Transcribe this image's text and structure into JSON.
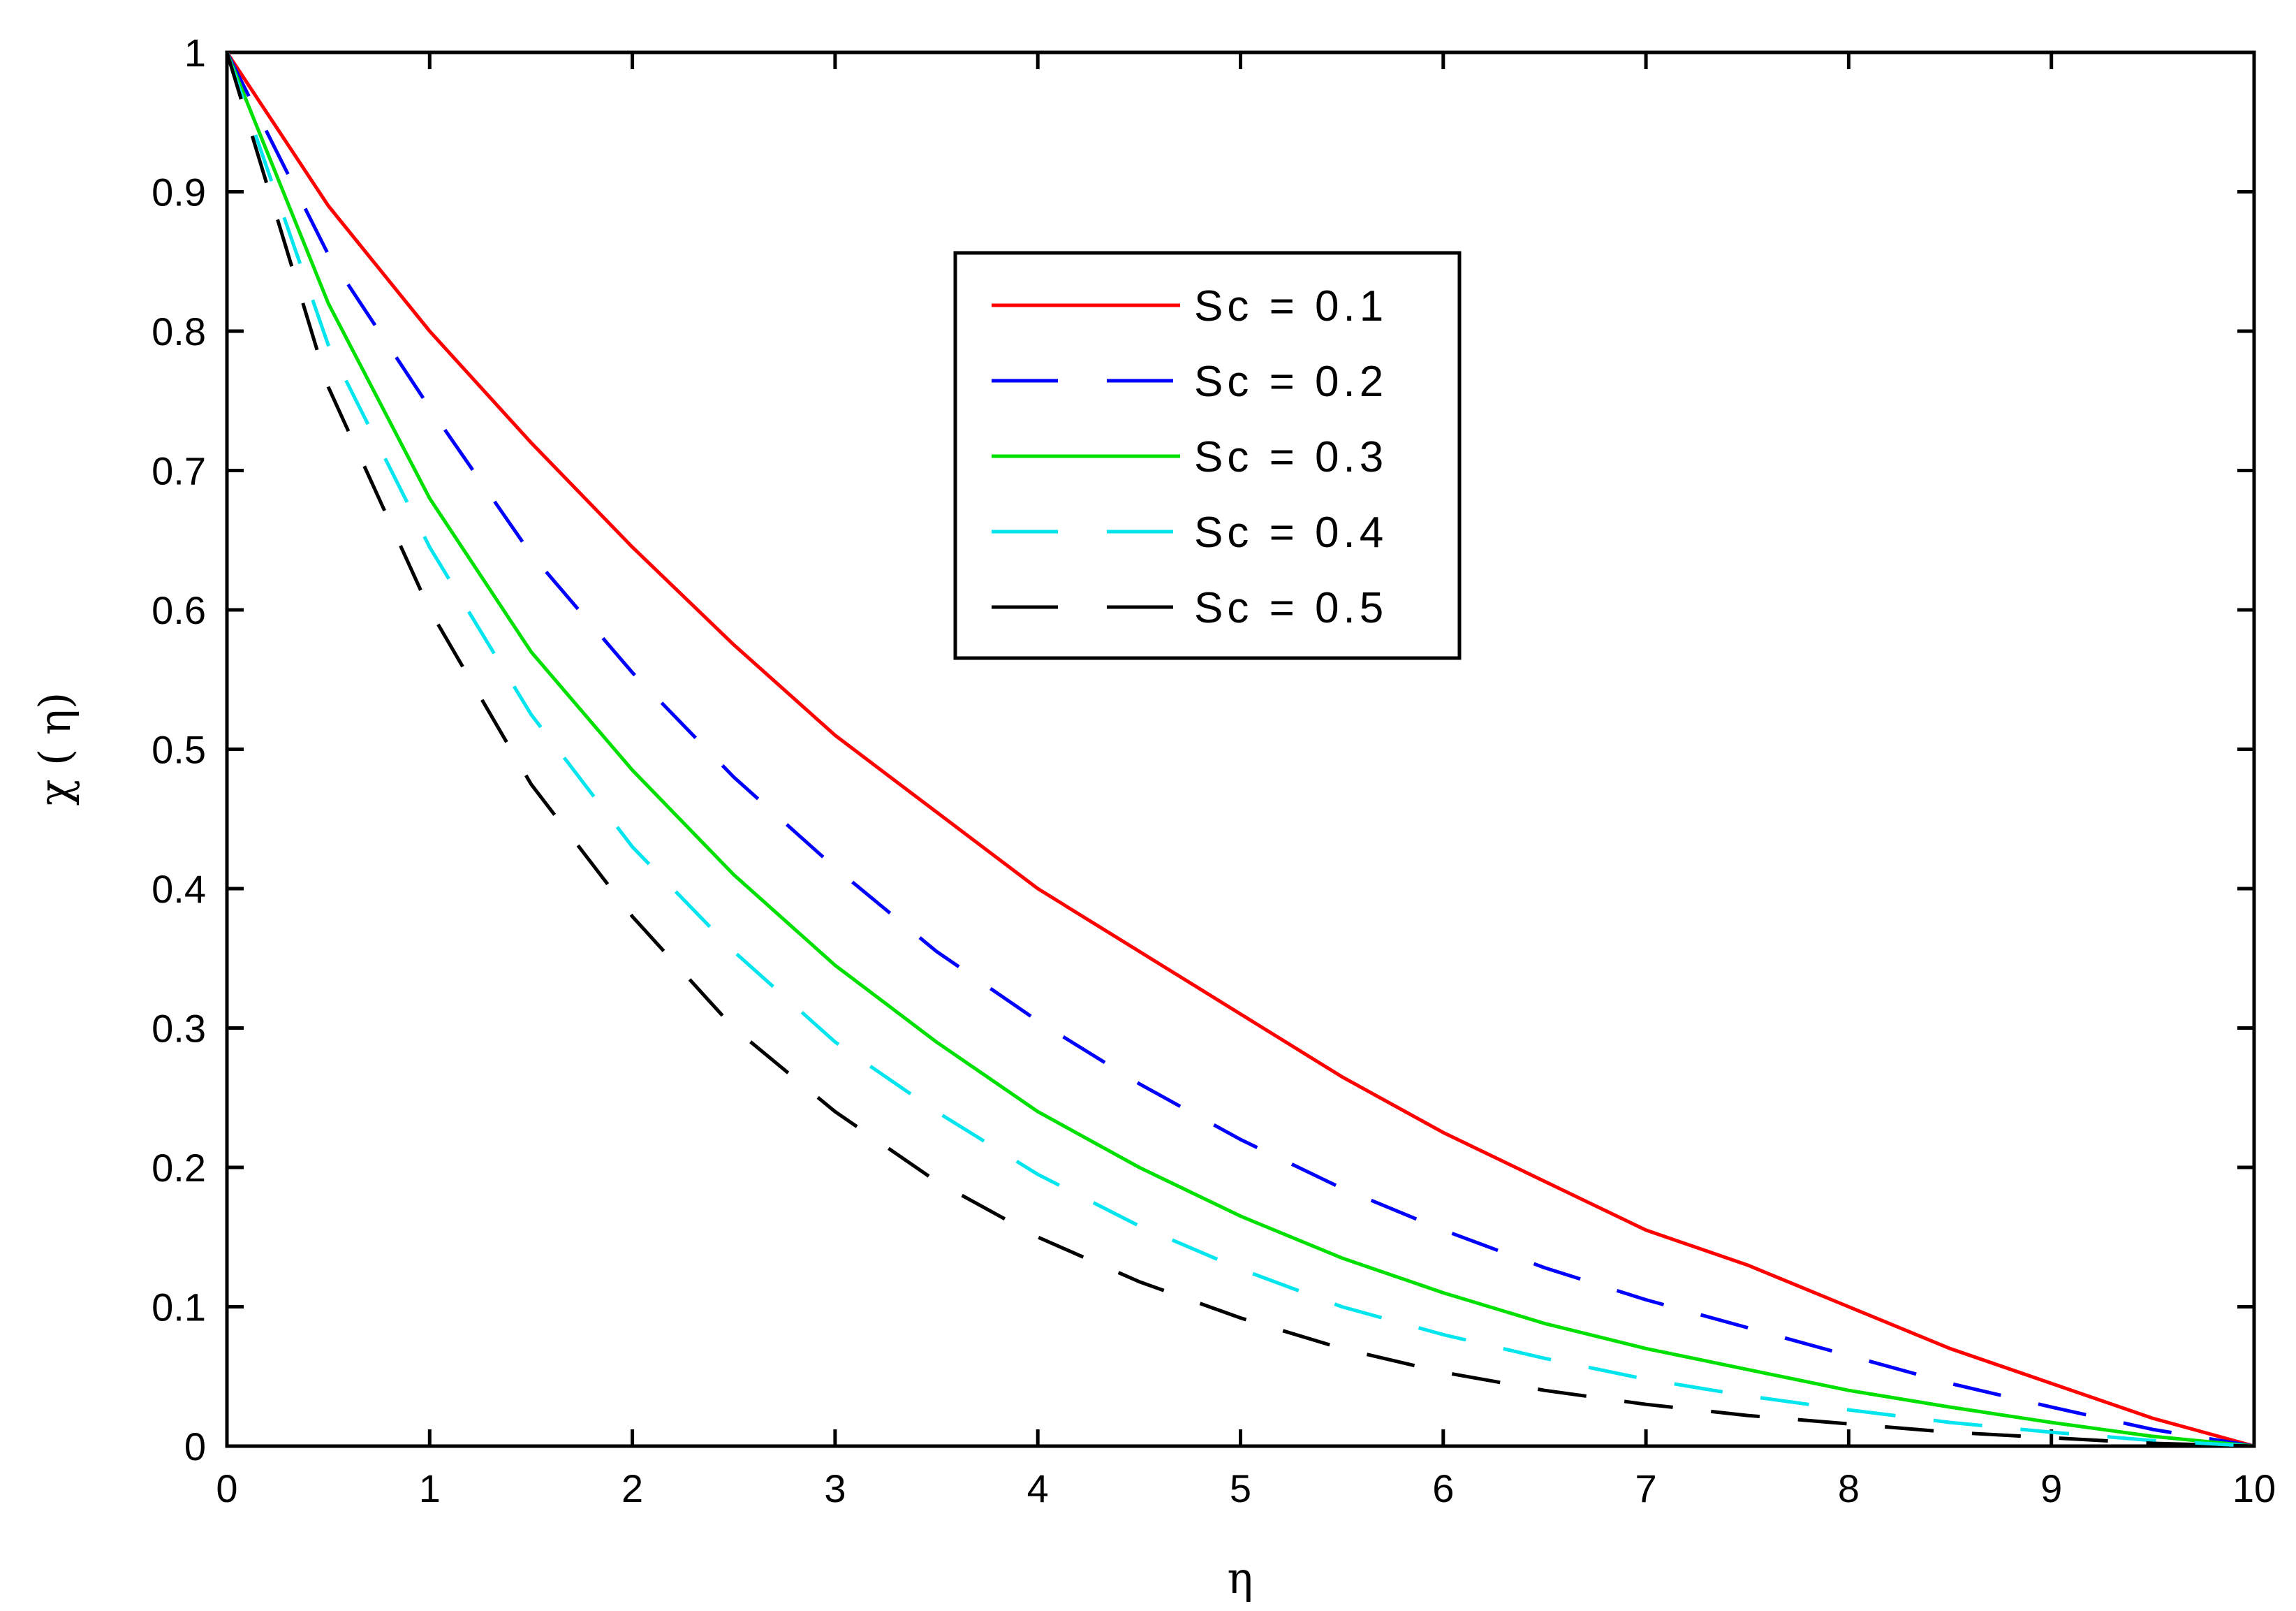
{
  "chart_data": {
    "type": "line",
    "title": "",
    "xlabel": "η",
    "ylabel": "χ ( η)",
    "xlim": [
      0,
      10
    ],
    "ylim": [
      0,
      1
    ],
    "grid": false,
    "legend_position": "top-center",
    "x_ticks": [
      "0",
      "1",
      "2",
      "3",
      "4",
      "5",
      "6",
      "7",
      "8",
      "9",
      "10"
    ],
    "y_ticks": [
      "0",
      "0.1",
      "0.2",
      "0.3",
      "0.4",
      "0.5",
      "0.6",
      "0.7",
      "0.8",
      "0.9",
      "1"
    ],
    "x": [
      0,
      0.5,
      1,
      1.5,
      2,
      2.5,
      3,
      3.5,
      4,
      4.5,
      5,
      5.5,
      6,
      6.5,
      7,
      7.5,
      8,
      8.5,
      9,
      9.5,
      10
    ],
    "series": [
      {
        "name": "Sc =  0.1",
        "color": "#ff0000",
        "dash": "solid",
        "values": [
          1.0,
          0.89,
          0.8,
          0.72,
          0.645,
          0.575,
          0.51,
          0.455,
          0.4,
          0.355,
          0.31,
          0.265,
          0.225,
          0.19,
          0.155,
          0.13,
          0.1,
          0.07,
          0.045,
          0.02,
          0.0
        ]
      },
      {
        "name": "Sc =  0.2",
        "color": "#0000ff",
        "dash": "dashed",
        "values": [
          1.0,
          0.855,
          0.745,
          0.64,
          0.555,
          0.48,
          0.415,
          0.355,
          0.305,
          0.26,
          0.22,
          0.185,
          0.155,
          0.128,
          0.105,
          0.085,
          0.065,
          0.045,
          0.028,
          0.012,
          0.0
        ]
      },
      {
        "name": "Sc =  0.3",
        "color": "#00e000",
        "dash": "solid",
        "values": [
          1.0,
          0.82,
          0.68,
          0.57,
          0.485,
          0.41,
          0.345,
          0.29,
          0.24,
          0.2,
          0.165,
          0.135,
          0.11,
          0.088,
          0.07,
          0.055,
          0.04,
          0.028,
          0.017,
          0.007,
          0.0
        ]
      },
      {
        "name": "Sc =  0.4",
        "color": "#00e5ee",
        "dash": "dashed",
        "values": [
          1.0,
          0.79,
          0.645,
          0.525,
          0.43,
          0.355,
          0.29,
          0.24,
          0.195,
          0.158,
          0.127,
          0.1,
          0.08,
          0.063,
          0.048,
          0.036,
          0.026,
          0.017,
          0.01,
          0.004,
          0.0
        ]
      },
      {
        "name": "Sc =  0.5",
        "color": "#000000",
        "dash": "dashed",
        "values": [
          1.0,
          0.76,
          0.6,
          0.475,
          0.38,
          0.3,
          0.24,
          0.19,
          0.15,
          0.118,
          0.092,
          0.07,
          0.053,
          0.04,
          0.03,
          0.022,
          0.016,
          0.01,
          0.006,
          0.002,
          0.0
        ]
      }
    ]
  }
}
